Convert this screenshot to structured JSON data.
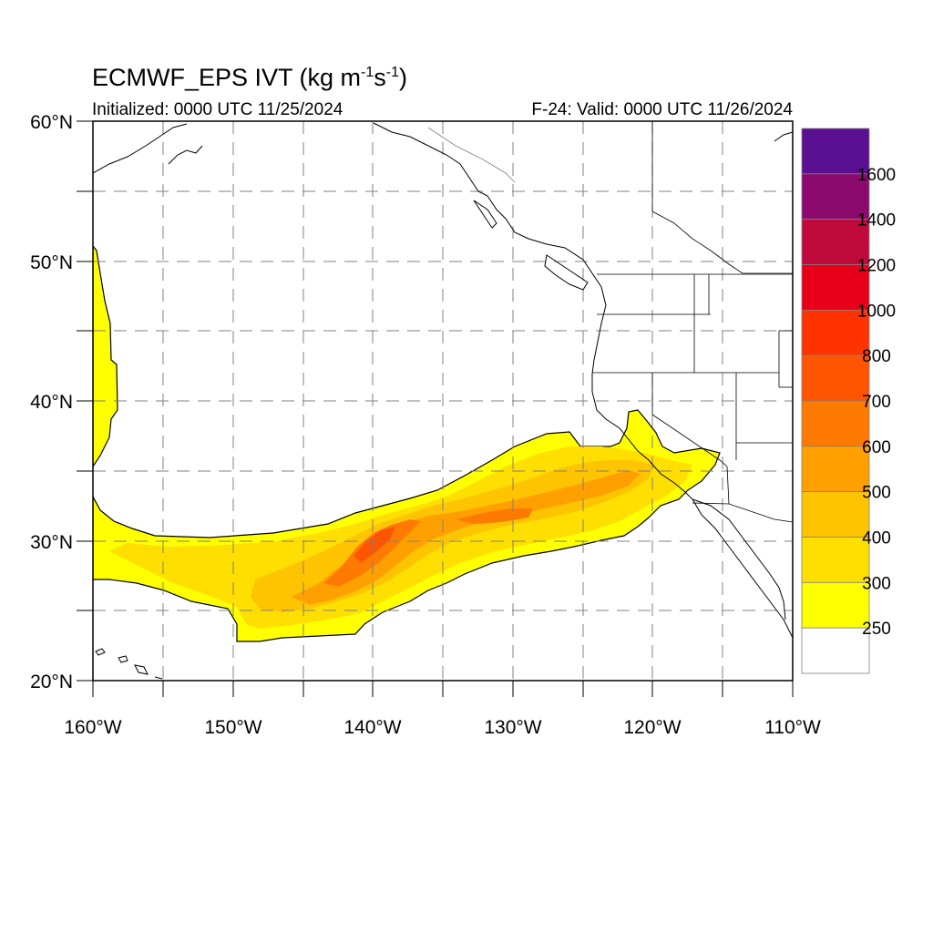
{
  "title": {
    "main": "ECMWF_EPS IVT (kg m",
    "sup1": "-1",
    "mid": "s",
    "sup2": "-1",
    "end": ")"
  },
  "subtitle_left": "Initialized: 0000 UTC 11/25/2024",
  "subtitle_right": "F-24: Valid: 0000 UTC 11/26/2024",
  "map": {
    "lon_range": [
      -160,
      -110
    ],
    "lat_range": [
      20,
      60
    ],
    "lat_labels": [
      "60°N",
      "50°N",
      "40°N",
      "30°N",
      "20°N"
    ],
    "lon_labels": [
      "160°W",
      "150°W",
      "140°W",
      "130°W",
      "120°W",
      "110°W"
    ],
    "gridlines": "dashed",
    "variable": "Integrated Vapor Transport"
  },
  "colorbar": {
    "labels": [
      "1600",
      "1400",
      "1200",
      "1000",
      "800",
      "700",
      "600",
      "500",
      "400",
      "300",
      "250"
    ],
    "colors": [
      "#5b0f91",
      "#8c0a6e",
      "#c10a3c",
      "#e8001a",
      "#ff3300",
      "#ff5500",
      "#ff7a00",
      "#ffa000",
      "#ffc400",
      "#ffdf00",
      "#ffff00",
      "#ffffff"
    ]
  }
}
